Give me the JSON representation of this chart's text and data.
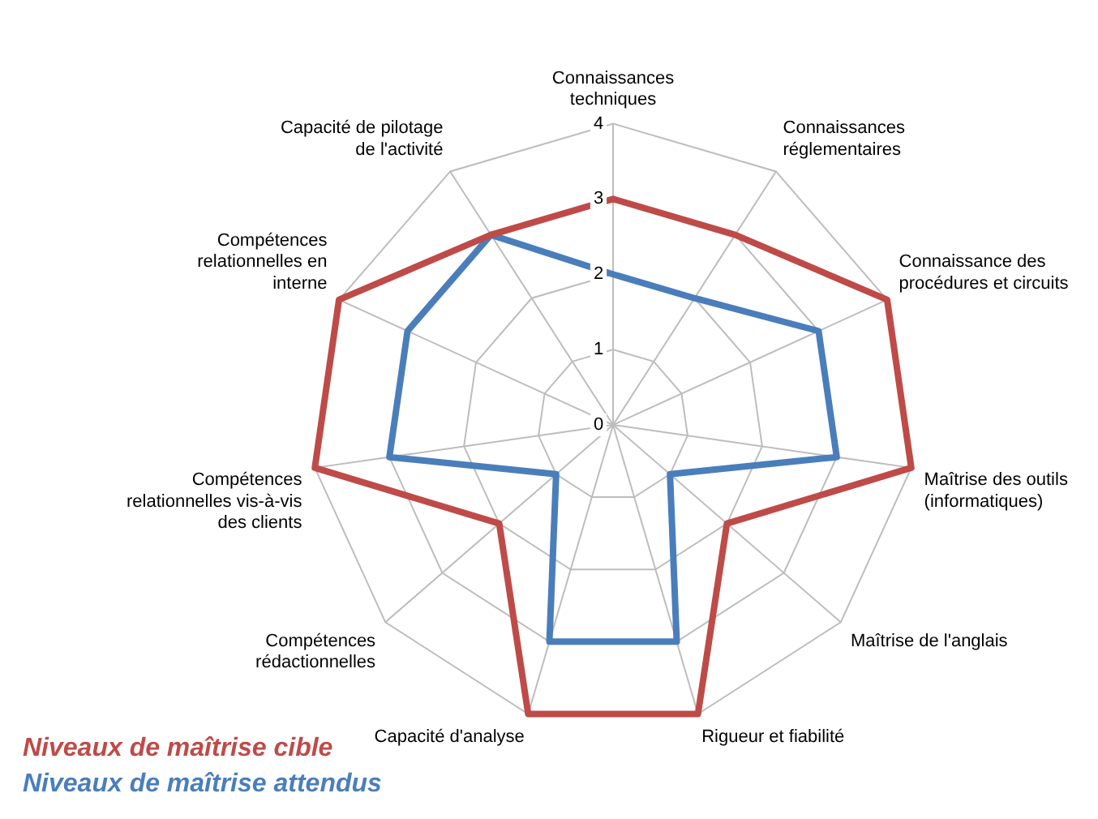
{
  "chart_data": {
    "type": "radar",
    "categories": [
      "Connaissances techniques",
      "Connaissances réglementaires",
      "Connaissance des procédures et circuits",
      "Maîtrise des outils (informatiques)",
      "Maîtrise de l'anglais",
      "Rigueur et fiabilité",
      "Capacité d'analyse",
      "Compétences rédactionnelles",
      "Compétences relationnelles vis-à-vis des clients",
      "Compétences relationnelles en interne",
      "Capacité de pilotage de l'activité"
    ],
    "series": [
      {
        "name": "Niveaux de maîtrise cible",
        "color": "#be4b48",
        "values": [
          3,
          3,
          4,
          4,
          2,
          4,
          4,
          2,
          4,
          4,
          3
        ]
      },
      {
        "name": "Niveaux de maîtrise attendus",
        "color": "#4a7ebb",
        "values": [
          2,
          2,
          3,
          3,
          1,
          3,
          3,
          1,
          3,
          3,
          3
        ]
      }
    ],
    "ylim": [
      0,
      4
    ],
    "yticks": [
      0,
      1,
      2,
      3,
      4
    ],
    "grid": true,
    "marker": "none",
    "legend": "bottom left"
  }
}
